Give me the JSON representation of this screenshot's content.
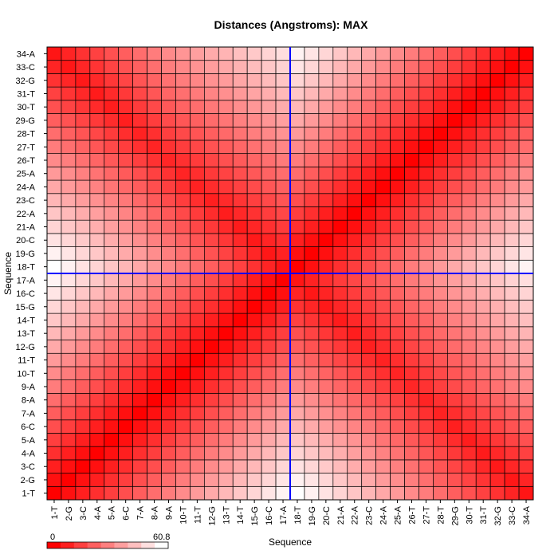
{
  "chart_data": {
    "type": "heatmap",
    "title": "Distances (Angstroms):  MAX",
    "xlabel": "Sequence",
    "ylabel": "Sequence",
    "labels": [
      "1-T",
      "2-G",
      "3-C",
      "4-A",
      "5-A",
      "6-C",
      "7-A",
      "8-A",
      "9-A",
      "10-T",
      "11-T",
      "12-G",
      "13-T",
      "14-T",
      "15-G",
      "16-C",
      "17-A",
      "18-T",
      "19-G",
      "20-C",
      "21-A",
      "22-A",
      "23-C",
      "24-A",
      "25-A",
      "26-T",
      "27-T",
      "28-T",
      "29-G",
      "30-T",
      "31-T",
      "32-G",
      "33-C",
      "34-A"
    ],
    "value_range": [
      0,
      60.8
    ],
    "colorbar": {
      "min_label": "0",
      "max_label": "60.8",
      "low_color": "#ff0000",
      "high_color": "#ffffff"
    },
    "crosshair": {
      "x_label": "17-A",
      "y_label": "17-A",
      "color": "#0000ff"
    },
    "values": [
      [
        0.0,
        3.7,
        7.4,
        11.1,
        14.8,
        18.5,
        22.2,
        25.9,
        29.5,
        33.1,
        36.7,
        40.3,
        43.9,
        47.5,
        51.0,
        54.5,
        58.0,
        60.8,
        57.5,
        54.0,
        50.5,
        47.0,
        43.5,
        40.0,
        36.5,
        33.0,
        29.5,
        26.0,
        22.5,
        19.0,
        15.5,
        12.0,
        8.5,
        5.0
      ],
      [
        3.7,
        0.0,
        3.7,
        7.4,
        11.1,
        14.8,
        18.5,
        22.2,
        25.9,
        29.5,
        33.1,
        36.7,
        40.3,
        43.9,
        47.5,
        51.0,
        54.5,
        57.5,
        54.5,
        51.0,
        47.5,
        44.0,
        40.5,
        37.0,
        33.5,
        30.0,
        26.5,
        23.0,
        19.5,
        16.0,
        12.5,
        9.0,
        5.5,
        8.5
      ],
      [
        7.4,
        3.7,
        0.0,
        3.7,
        7.4,
        11.1,
        14.8,
        18.5,
        22.2,
        25.9,
        29.5,
        33.1,
        36.7,
        40.3,
        43.9,
        47.5,
        51.0,
        54.0,
        51.0,
        48.0,
        44.5,
        41.0,
        37.5,
        34.0,
        30.5,
        27.0,
        23.5,
        20.0,
        16.5,
        13.0,
        9.5,
        6.0,
        9.0,
        12.0
      ],
      [
        11.1,
        7.4,
        3.7,
        0.0,
        3.7,
        7.4,
        11.1,
        14.8,
        18.5,
        22.2,
        25.9,
        29.5,
        33.1,
        36.7,
        40.3,
        43.9,
        47.5,
        50.5,
        47.5,
        44.5,
        41.5,
        38.0,
        34.5,
        31.0,
        27.5,
        24.0,
        20.5,
        17.0,
        13.5,
        10.0,
        6.5,
        9.5,
        12.5,
        15.5
      ],
      [
        14.8,
        11.1,
        7.4,
        3.7,
        0.0,
        3.7,
        7.4,
        11.1,
        14.8,
        18.5,
        22.2,
        25.9,
        29.5,
        33.1,
        36.7,
        40.3,
        43.9,
        47.0,
        44.0,
        41.0,
        38.0,
        35.0,
        31.5,
        28.0,
        24.5,
        21.0,
        17.5,
        14.0,
        10.5,
        7.0,
        10.0,
        13.0,
        16.0,
        19.0
      ],
      [
        18.5,
        14.8,
        11.1,
        7.4,
        3.7,
        0.0,
        3.7,
        7.4,
        11.1,
        14.8,
        18.5,
        22.2,
        25.9,
        29.5,
        33.1,
        36.7,
        40.3,
        43.5,
        40.5,
        37.5,
        34.5,
        31.5,
        28.5,
        25.0,
        21.5,
        18.0,
        14.5,
        11.0,
        7.5,
        10.5,
        13.5,
        16.5,
        19.5,
        22.5
      ],
      [
        22.2,
        18.5,
        14.8,
        11.1,
        7.4,
        3.7,
        0.0,
        3.7,
        7.4,
        11.1,
        14.8,
        18.5,
        22.2,
        25.9,
        29.5,
        33.1,
        36.7,
        40.0,
        37.0,
        34.0,
        31.0,
        28.0,
        25.0,
        22.0,
        18.5,
        15.0,
        11.5,
        8.0,
        11.0,
        14.0,
        17.0,
        20.0,
        23.0,
        26.0
      ],
      [
        25.9,
        22.2,
        18.5,
        14.8,
        11.1,
        7.4,
        3.7,
        0.0,
        3.7,
        7.4,
        11.1,
        14.8,
        18.5,
        22.2,
        25.9,
        29.5,
        33.1,
        36.5,
        33.5,
        30.5,
        27.5,
        24.5,
        21.5,
        18.5,
        15.5,
        12.0,
        8.5,
        11.5,
        14.5,
        17.5,
        20.5,
        23.5,
        26.5,
        29.5
      ],
      [
        29.5,
        25.9,
        22.2,
        18.5,
        14.8,
        11.1,
        7.4,
        3.7,
        0.0,
        3.7,
        7.4,
        11.1,
        14.8,
        18.5,
        22.2,
        25.9,
        29.5,
        33.0,
        30.0,
        27.0,
        24.0,
        21.0,
        18.0,
        15.0,
        12.0,
        9.0,
        12.0,
        15.0,
        18.0,
        21.0,
        24.0,
        27.0,
        30.0,
        33.0
      ],
      [
        33.1,
        29.5,
        25.9,
        22.2,
        18.5,
        14.8,
        11.1,
        7.4,
        3.7,
        0.0,
        3.7,
        7.4,
        11.1,
        14.8,
        18.5,
        22.2,
        25.9,
        29.5,
        26.5,
        23.5,
        20.5,
        17.5,
        14.5,
        11.5,
        8.5,
        11.5,
        14.5,
        17.5,
        20.5,
        23.5,
        26.5,
        29.5,
        32.5,
        35.5
      ],
      [
        36.7,
        33.1,
        29.5,
        25.9,
        22.2,
        18.5,
        14.8,
        11.1,
        7.4,
        3.7,
        0.0,
        3.7,
        7.4,
        11.1,
        14.8,
        18.5,
        22.2,
        26.0,
        23.0,
        20.0,
        17.0,
        14.0,
        11.0,
        8.0,
        11.0,
        14.0,
        17.0,
        20.0,
        23.0,
        26.0,
        29.0,
        32.0,
        35.0,
        38.0
      ],
      [
        40.3,
        36.7,
        33.1,
        29.5,
        25.9,
        22.2,
        18.5,
        14.8,
        11.1,
        7.4,
        3.7,
        0.0,
        3.7,
        7.4,
        11.1,
        14.8,
        18.5,
        22.5,
        19.5,
        16.5,
        13.5,
        10.5,
        7.5,
        10.5,
        13.5,
        16.5,
        19.5,
        22.5,
        25.5,
        28.5,
        31.5,
        34.5,
        37.5,
        40.5
      ],
      [
        43.9,
        40.3,
        36.7,
        33.1,
        29.5,
        25.9,
        22.2,
        18.5,
        14.8,
        11.1,
        7.4,
        3.7,
        0.0,
        3.7,
        7.4,
        11.1,
        14.8,
        19.0,
        16.0,
        13.0,
        10.0,
        7.0,
        10.0,
        13.0,
        16.0,
        19.0,
        22.0,
        25.0,
        28.0,
        31.0,
        34.0,
        37.0,
        40.0,
        43.0
      ],
      [
        47.5,
        43.9,
        40.3,
        36.7,
        33.1,
        29.5,
        25.9,
        22.2,
        18.5,
        14.8,
        11.1,
        7.4,
        3.7,
        0.0,
        3.7,
        7.4,
        11.1,
        15.5,
        12.5,
        9.5,
        6.5,
        9.5,
        12.5,
        15.5,
        18.5,
        21.5,
        24.5,
        27.5,
        30.5,
        33.5,
        36.5,
        39.5,
        42.5,
        45.5
      ],
      [
        51.0,
        47.5,
        43.9,
        40.3,
        36.7,
        33.1,
        29.5,
        25.9,
        22.2,
        18.5,
        14.8,
        11.1,
        7.4,
        3.7,
        0.0,
        3.7,
        7.4,
        12.0,
        9.0,
        6.0,
        9.0,
        12.0,
        15.0,
        18.0,
        21.0,
        24.0,
        27.0,
        30.0,
        33.0,
        36.0,
        39.0,
        42.0,
        45.0,
        48.0
      ],
      [
        54.5,
        51.0,
        47.5,
        43.9,
        40.3,
        36.7,
        33.1,
        29.5,
        25.9,
        22.2,
        18.5,
        14.8,
        11.1,
        7.4,
        3.7,
        0.0,
        3.7,
        8.5,
        5.5,
        8.5,
        11.5,
        14.5,
        17.5,
        20.5,
        23.5,
        26.5,
        29.5,
        32.5,
        35.5,
        38.5,
        41.5,
        44.5,
        47.5,
        50.5
      ],
      [
        58.0,
        54.5,
        51.0,
        47.5,
        43.9,
        40.3,
        36.7,
        33.1,
        29.5,
        25.9,
        22.2,
        18.5,
        14.8,
        11.1,
        7.4,
        3.7,
        0.0,
        5.0,
        8.0,
        11.0,
        14.0,
        17.0,
        20.0,
        23.0,
        26.0,
        29.0,
        32.0,
        35.0,
        38.0,
        41.0,
        44.0,
        47.0,
        50.0,
        53.0
      ],
      [
        60.8,
        57.5,
        54.0,
        50.5,
        47.0,
        43.5,
        40.0,
        36.5,
        33.0,
        29.5,
        26.0,
        22.5,
        19.0,
        15.5,
        12.0,
        8.5,
        5.0,
        0.0,
        3.7,
        7.4,
        11.1,
        14.8,
        18.5,
        22.2,
        25.9,
        29.5,
        33.1,
        36.7,
        40.3,
        43.9,
        47.5,
        51.0,
        54.5,
        58.0
      ],
      [
        57.5,
        54.5,
        51.0,
        47.5,
        44.0,
        40.5,
        37.0,
        33.5,
        30.0,
        26.5,
        23.0,
        19.5,
        16.0,
        12.5,
        9.0,
        5.5,
        8.0,
        3.7,
        0.0,
        3.7,
        7.4,
        11.1,
        14.8,
        18.5,
        22.2,
        25.9,
        29.5,
        33.1,
        36.7,
        40.3,
        43.9,
        47.5,
        51.0,
        54.5
      ],
      [
        54.0,
        51.0,
        48.0,
        44.5,
        41.0,
        37.5,
        34.0,
        30.5,
        27.0,
        23.5,
        20.0,
        16.5,
        13.0,
        9.5,
        6.0,
        8.5,
        11.0,
        7.4,
        3.7,
        0.0,
        3.7,
        7.4,
        11.1,
        14.8,
        18.5,
        22.2,
        25.9,
        29.5,
        33.1,
        36.7,
        40.3,
        43.9,
        47.5,
        51.0
      ],
      [
        50.5,
        47.5,
        44.5,
        41.5,
        38.0,
        34.5,
        31.0,
        27.5,
        24.0,
        20.5,
        17.0,
        13.5,
        10.0,
        6.5,
        9.0,
        11.5,
        14.0,
        11.1,
        7.4,
        3.7,
        0.0,
        3.7,
        7.4,
        11.1,
        14.8,
        18.5,
        22.2,
        25.9,
        29.5,
        33.1,
        36.7,
        40.3,
        43.9,
        47.5
      ],
      [
        47.0,
        44.0,
        41.0,
        38.0,
        35.0,
        31.5,
        28.0,
        24.5,
        21.0,
        17.5,
        14.0,
        10.5,
        7.0,
        9.5,
        12.0,
        14.5,
        17.0,
        14.8,
        11.1,
        7.4,
        3.7,
        0.0,
        3.7,
        7.4,
        11.1,
        14.8,
        18.5,
        22.2,
        25.9,
        29.5,
        33.1,
        36.7,
        40.3,
        43.9
      ],
      [
        43.5,
        40.5,
        37.5,
        34.5,
        31.5,
        28.5,
        25.0,
        21.5,
        18.0,
        14.5,
        11.0,
        7.5,
        10.0,
        12.5,
        15.0,
        17.5,
        20.0,
        18.5,
        14.8,
        11.1,
        7.4,
        3.7,
        0.0,
        3.7,
        7.4,
        11.1,
        14.8,
        18.5,
        22.2,
        25.9,
        29.5,
        33.1,
        36.7,
        40.3
      ],
      [
        40.0,
        37.0,
        34.0,
        31.0,
        28.0,
        25.0,
        22.0,
        18.5,
        15.0,
        11.5,
        8.0,
        10.5,
        13.0,
        15.5,
        18.0,
        20.5,
        23.0,
        22.2,
        18.5,
        14.8,
        11.1,
        7.4,
        3.7,
        0.0,
        3.7,
        7.4,
        11.1,
        14.8,
        18.5,
        22.2,
        25.9,
        29.5,
        33.1,
        36.7
      ],
      [
        36.5,
        33.5,
        30.5,
        27.5,
        24.5,
        21.5,
        18.5,
        15.5,
        12.0,
        8.5,
        11.0,
        13.5,
        16.0,
        18.5,
        21.0,
        23.5,
        26.0,
        25.9,
        22.2,
        18.5,
        14.8,
        11.1,
        7.4,
        3.7,
        0.0,
        3.7,
        7.4,
        11.1,
        14.8,
        18.5,
        22.2,
        25.9,
        29.5,
        33.1
      ],
      [
        33.0,
        30.0,
        27.0,
        24.0,
        21.0,
        18.0,
        15.0,
        12.0,
        9.0,
        11.5,
        14.0,
        16.5,
        19.0,
        21.5,
        24.0,
        26.5,
        29.0,
        29.5,
        25.9,
        22.2,
        18.5,
        14.8,
        11.1,
        7.4,
        3.7,
        0.0,
        3.7,
        7.4,
        11.1,
        14.8,
        18.5,
        22.2,
        25.9,
        29.5
      ],
      [
        29.5,
        26.5,
        23.5,
        20.5,
        17.5,
        14.5,
        11.5,
        8.5,
        12.0,
        14.5,
        17.0,
        19.5,
        22.0,
        24.5,
        27.0,
        29.5,
        32.0,
        33.1,
        29.5,
        25.9,
        22.2,
        18.5,
        14.8,
        11.1,
        7.4,
        3.7,
        0.0,
        3.7,
        7.4,
        11.1,
        14.8,
        18.5,
        22.2,
        25.9
      ],
      [
        26.0,
        23.0,
        20.0,
        17.0,
        14.0,
        11.0,
        8.0,
        11.5,
        15.0,
        17.5,
        20.0,
        22.5,
        25.0,
        27.5,
        30.0,
        32.5,
        35.0,
        36.7,
        33.1,
        29.5,
        25.9,
        22.2,
        18.5,
        14.8,
        11.1,
        7.4,
        3.7,
        0.0,
        3.7,
        7.4,
        11.1,
        14.8,
        18.5,
        22.2
      ],
      [
        22.5,
        19.5,
        16.5,
        13.5,
        10.5,
        7.5,
        11.0,
        14.5,
        18.0,
        20.5,
        23.0,
        25.5,
        28.0,
        30.5,
        33.0,
        35.5,
        38.0,
        40.3,
        36.7,
        33.1,
        29.5,
        25.9,
        22.2,
        18.5,
        14.8,
        11.1,
        7.4,
        3.7,
        0.0,
        3.7,
        7.4,
        11.1,
        14.8,
        18.5
      ],
      [
        19.0,
        16.0,
        13.0,
        10.0,
        7.0,
        10.5,
        14.0,
        17.5,
        21.0,
        23.5,
        26.0,
        28.5,
        31.0,
        33.5,
        36.0,
        38.5,
        41.0,
        43.9,
        40.3,
        36.7,
        33.1,
        29.5,
        25.9,
        22.2,
        18.5,
        14.8,
        11.1,
        7.4,
        3.7,
        0.0,
        3.7,
        7.4,
        11.1,
        14.8
      ],
      [
        15.5,
        12.5,
        9.5,
        6.5,
        10.0,
        13.5,
        17.0,
        20.5,
        24.0,
        26.5,
        29.0,
        31.5,
        34.0,
        36.5,
        39.0,
        41.5,
        44.0,
        47.5,
        43.9,
        40.3,
        36.7,
        33.1,
        29.5,
        25.9,
        22.2,
        18.5,
        14.8,
        11.1,
        7.4,
        3.7,
        0.0,
        3.7,
        7.4,
        11.1
      ],
      [
        12.0,
        9.0,
        6.0,
        9.5,
        13.0,
        16.5,
        20.0,
        23.5,
        27.0,
        29.5,
        32.0,
        34.5,
        37.0,
        39.5,
        42.0,
        44.5,
        47.0,
        51.0,
        47.5,
        43.9,
        40.3,
        36.7,
        33.1,
        29.5,
        25.9,
        22.2,
        18.5,
        14.8,
        11.1,
        7.4,
        3.7,
        0.0,
        3.7,
        7.4
      ],
      [
        8.5,
        5.5,
        9.0,
        12.5,
        16.0,
        19.5,
        23.0,
        26.5,
        30.0,
        32.5,
        35.0,
        37.5,
        40.0,
        42.5,
        45.0,
        47.5,
        50.0,
        54.5,
        51.0,
        47.5,
        43.9,
        40.3,
        36.7,
        33.1,
        29.5,
        25.9,
        22.2,
        18.5,
        14.8,
        11.1,
        7.4,
        3.7,
        0.0,
        3.7
      ],
      [
        5.0,
        8.5,
        12.0,
        15.5,
        19.0,
        22.5,
        26.0,
        29.5,
        33.0,
        35.5,
        38.0,
        40.5,
        43.0,
        45.5,
        48.0,
        50.5,
        53.0,
        58.0,
        54.5,
        51.0,
        47.5,
        43.9,
        40.3,
        36.7,
        33.1,
        29.5,
        25.9,
        22.2,
        18.5,
        14.8,
        11.1,
        7.4,
        3.7,
        0.0
      ]
    ]
  }
}
